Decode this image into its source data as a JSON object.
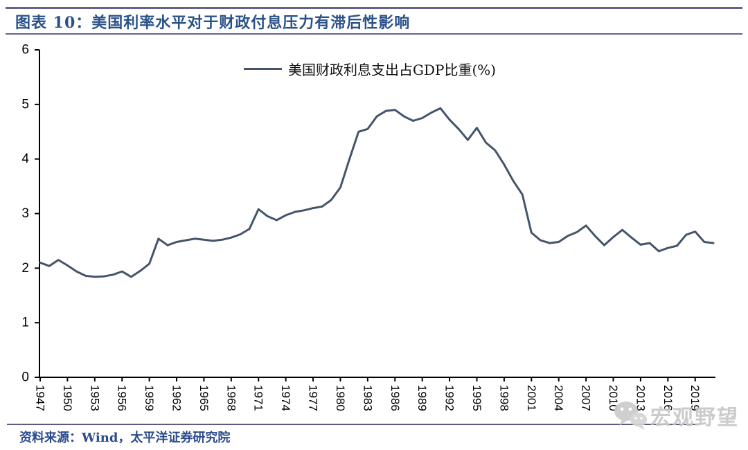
{
  "header": {
    "title": "图表 10：美国利率水平对于财政付息压力有滞后性影响"
  },
  "chart_data": {
    "type": "line",
    "title": "图表 10：美国利率水平对于财政付息压力有滞后性影响",
    "xlabel": "",
    "ylabel": "",
    "ylim": [
      0,
      6
    ],
    "y_ticks": [
      0,
      1,
      2,
      3,
      4,
      5,
      6
    ],
    "x_ticks": [
      1947,
      1950,
      1953,
      1956,
      1959,
      1962,
      1965,
      1968,
      1971,
      1974,
      1977,
      1980,
      1983,
      1986,
      1989,
      1992,
      1995,
      1998,
      2001,
      2004,
      2007,
      2010,
      2013,
      2016,
      2019
    ],
    "grid": false,
    "legend_position": "top-center",
    "series": [
      {
        "name": "美国财政利息支出占GDP比重(%)",
        "color": "#44546A",
        "x": [
          1947,
          1948,
          1949,
          1950,
          1951,
          1952,
          1953,
          1954,
          1955,
          1956,
          1957,
          1958,
          1959,
          1960,
          1961,
          1962,
          1963,
          1964,
          1965,
          1966,
          1967,
          1968,
          1969,
          1970,
          1971,
          1972,
          1973,
          1974,
          1975,
          1976,
          1977,
          1978,
          1979,
          1980,
          1981,
          1982,
          1983,
          1984,
          1985,
          1986,
          1987,
          1988,
          1989,
          1990,
          1991,
          1992,
          1993,
          1994,
          1995,
          1996,
          1997,
          1998,
          1999,
          2000,
          2001,
          2002,
          2003,
          2004,
          2005,
          2006,
          2007,
          2008,
          2009,
          2010,
          2011,
          2012,
          2013,
          2014,
          2015,
          2016,
          2017,
          2018,
          2019,
          2020,
          2021
        ],
        "values": [
          2.1,
          2.04,
          2.15,
          2.05,
          1.94,
          1.86,
          1.84,
          1.85,
          1.88,
          1.94,
          1.84,
          1.95,
          2.08,
          2.54,
          2.42,
          2.48,
          2.51,
          2.54,
          2.52,
          2.5,
          2.52,
          2.56,
          2.62,
          2.72,
          3.08,
          2.95,
          2.88,
          2.97,
          3.03,
          3.06,
          3.1,
          3.13,
          3.25,
          3.48,
          4.0,
          4.5,
          4.55,
          4.78,
          4.88,
          4.9,
          4.78,
          4.7,
          4.75,
          4.85,
          4.93,
          4.72,
          4.55,
          4.35,
          4.57,
          4.3,
          4.16,
          3.9,
          3.6,
          3.35,
          2.65,
          2.51,
          2.46,
          2.48,
          2.59,
          2.66,
          2.78,
          2.59,
          2.42,
          2.57,
          2.7,
          2.56,
          2.43,
          2.46,
          2.31,
          2.37,
          2.41,
          2.61,
          2.67,
          2.48,
          2.46
        ]
      }
    ]
  },
  "watermark": {
    "text": "宏观野望"
  },
  "footer": {
    "source": "资料来源：Wind，太平洋证券研究院"
  },
  "colors": {
    "line": "#44546A",
    "title_text": "#2B5288",
    "rule": "#63638F",
    "axis": "#000000",
    "watermark": "#c7c7c7"
  }
}
